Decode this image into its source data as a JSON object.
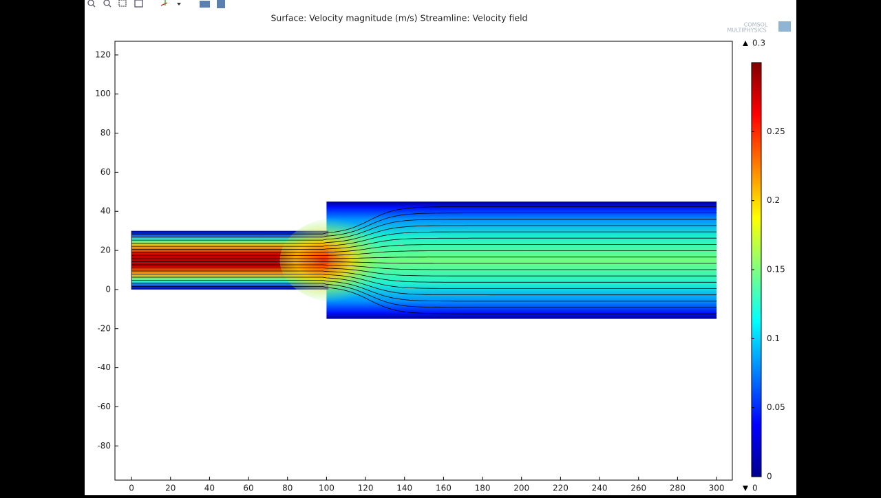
{
  "chart_data": {
    "type": "surface",
    "title": "Surface: Velocity magnitude (m/s)  Streamline: Velocity field",
    "logo": [
      "COMSOL",
      "MULTIPHYSICS"
    ],
    "xlim": [
      -8.5,
      308.1
    ],
    "ylim": [
      -97.5,
      127
    ],
    "xticks": [
      0,
      20,
      40,
      60,
      80,
      100,
      120,
      140,
      160,
      180,
      200,
      220,
      240,
      260,
      280,
      300
    ],
    "yticks": [
      -80,
      -60,
      -40,
      -20,
      0,
      20,
      40,
      60,
      80,
      100,
      120
    ],
    "colorbar": {
      "lim": [
        0,
        0.3
      ],
      "ticks": [
        0,
        0.05,
        0.1,
        0.15,
        0.2,
        0.25
      ],
      "max": 0.3,
      "min": 0
    }
  }
}
